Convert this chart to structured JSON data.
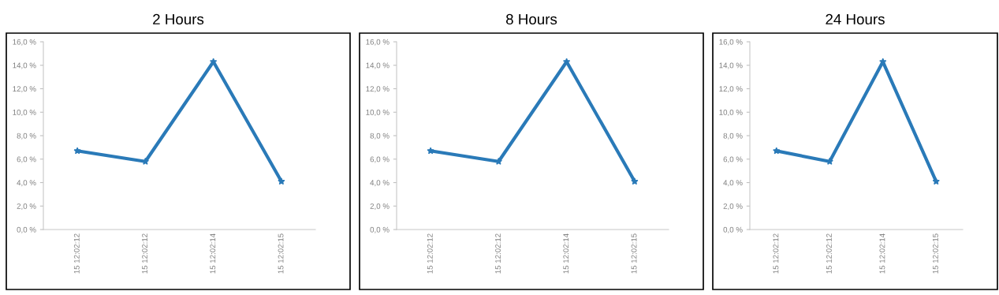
{
  "chart_data": [
    {
      "type": "line",
      "title": "2 Hours",
      "categories": [
        "15 12:02:12",
        "15 12:02:12",
        "15 12:02:14",
        "15 12:02:15"
      ],
      "series": [
        {
          "color": "#2a7ab8",
          "values": [
            6.7,
            5.8,
            14.3,
            4.1
          ]
        }
      ],
      "ylim": [
        0,
        16
      ],
      "yticks": [
        {
          "value": 0,
          "label": "0,0 %"
        },
        {
          "value": 2,
          "label": "2,0 %"
        },
        {
          "value": 4,
          "label": "4,0 %"
        },
        {
          "value": 6,
          "label": "6,0 %"
        },
        {
          "value": 8,
          "label": "8,0 %"
        },
        {
          "value": 10,
          "label": "10,0 %"
        },
        {
          "value": 12,
          "label": "12,0 %"
        },
        {
          "value": 14,
          "label": "14,0 %"
        },
        {
          "value": 16,
          "label": "16,0 %"
        }
      ],
      "marker": "star",
      "line_style": "solid"
    },
    {
      "type": "line",
      "title": "8 Hours",
      "categories": [
        "15 12:02:12",
        "15 12:02:12",
        "15 12:02:14",
        "15 12:02:15"
      ],
      "series": [
        {
          "color": "#2a7ab8",
          "values": [
            6.7,
            5.8,
            14.3,
            4.1
          ]
        }
      ],
      "ylim": [
        0,
        16
      ],
      "yticks": [
        {
          "value": 0,
          "label": "0,0 %"
        },
        {
          "value": 2,
          "label": "2,0 %"
        },
        {
          "value": 4,
          "label": "4,0 %"
        },
        {
          "value": 6,
          "label": "6,0 %"
        },
        {
          "value": 8,
          "label": "8,0 %"
        },
        {
          "value": 10,
          "label": "10,0 %"
        },
        {
          "value": 12,
          "label": "12,0 %"
        },
        {
          "value": 14,
          "label": "14,0 %"
        },
        {
          "value": 16,
          "label": "16,0 %"
        }
      ],
      "marker": "star",
      "line_style": "solid"
    },
    {
      "type": "line",
      "title": "24 Hours",
      "categories": [
        "15 12:02:12",
        "15 12:02:12",
        "15 12:02:14",
        "15 12:02:15"
      ],
      "series": [
        {
          "color": "#2a7ab8",
          "values": [
            6.7,
            5.8,
            14.3,
            4.1
          ]
        }
      ],
      "ylim": [
        0,
        16
      ],
      "yticks": [
        {
          "value": 0,
          "label": "0,0 %"
        },
        {
          "value": 2,
          "label": "2,0 %"
        },
        {
          "value": 4,
          "label": "4,0 %"
        },
        {
          "value": 6,
          "label": "6,0 %"
        },
        {
          "value": 8,
          "label": "8,0 %"
        },
        {
          "value": 10,
          "label": "10,0 %"
        },
        {
          "value": 12,
          "label": "12,0 %"
        },
        {
          "value": 14,
          "label": "14,0 %"
        },
        {
          "value": 16,
          "label": "16,0 %"
        }
      ],
      "marker": "star",
      "line_style": "solid"
    }
  ]
}
